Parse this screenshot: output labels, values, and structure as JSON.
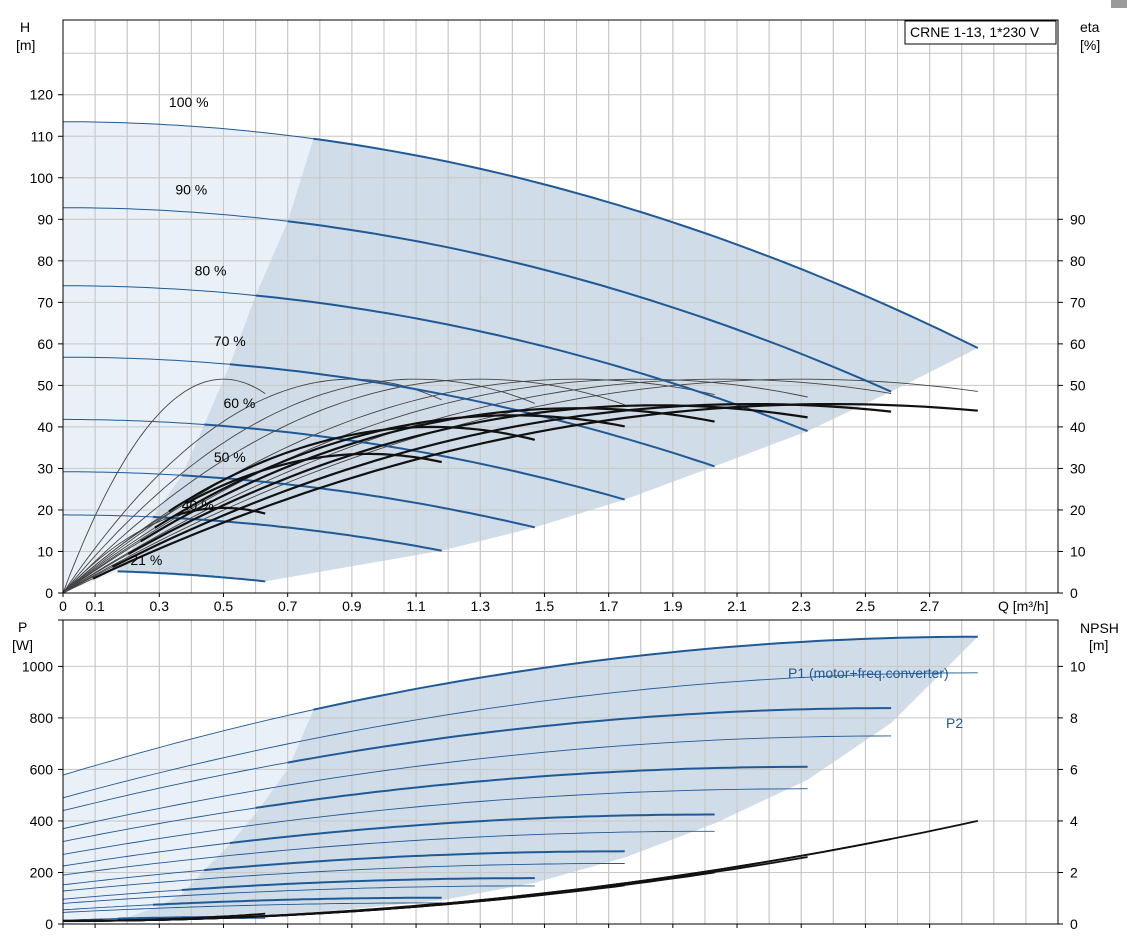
{
  "colors": {
    "grid": "#c8c8c8",
    "axis": "#000000",
    "blue": "#1f5a96",
    "region_dark": "#d0dce7",
    "region_light": "#e9f0f8",
    "eff": "#111111",
    "eff_thin": "#444444"
  },
  "chart_data": [
    {
      "type": "line",
      "panel": "head-efficiency",
      "legend_box": "CRNE 1-13, 1*230 V",
      "left_axis": {
        "label": "H",
        "unit": "[m]",
        "range": [
          0,
          138
        ],
        "ticks": [
          0,
          10,
          20,
          30,
          40,
          50,
          60,
          70,
          80,
          90,
          100,
          110,
          120
        ]
      },
      "right_axis": {
        "label": "eta",
        "unit": "[%]",
        "range": [
          0,
          138
        ],
        "ticks": [
          0,
          10,
          20,
          30,
          40,
          50,
          60,
          70,
          80,
          90
        ]
      },
      "x_axis": {
        "label": "Q [m³/h]",
        "range": [
          0,
          3.1
        ],
        "tick_labels": [
          "0",
          "0.1",
          "0.3",
          "0.5",
          "0.7",
          "0.9",
          "1.1",
          "1.3",
          "1.5",
          "1.7",
          "1.9",
          "2.1",
          "2.3",
          "2.5",
          "2.7"
        ],
        "tick_values": [
          0,
          0.1,
          0.3,
          0.5,
          0.7,
          0.9,
          1.1,
          1.3,
          1.5,
          1.7,
          1.9,
          2.1,
          2.3,
          2.5,
          2.7
        ]
      },
      "grid": true,
      "head_curves": [
        {
          "label": "100 %",
          "shutoff": 113.5,
          "end": [
            2.85,
            59
          ],
          "label_at": [
            0.33,
            117
          ]
        },
        {
          "label": "90 %",
          "shutoff": 92.8,
          "end": [
            2.58,
            48.5
          ],
          "label_at": [
            0.35,
            96
          ]
        },
        {
          "label": "80 %",
          "shutoff": 74,
          "end": [
            2.32,
            39
          ],
          "label_at": [
            0.41,
            76.5
          ]
        },
        {
          "label": "70 %",
          "shutoff": 56.8,
          "end": [
            2.03,
            30.5
          ],
          "label_at": [
            0.47,
            59.5
          ]
        },
        {
          "label": "60 %",
          "shutoff": 41.8,
          "end": [
            1.75,
            22.5
          ],
          "label_at": [
            0.5,
            44.5
          ]
        },
        {
          "label": "50 %",
          "shutoff": 29.2,
          "end": [
            1.47,
            15.8
          ],
          "label_at": [
            0.47,
            31.5
          ]
        },
        {
          "label": "40 %",
          "shutoff": 18.8,
          "end": [
            1.18,
            10.2
          ],
          "label_at": [
            0.37,
            20
          ]
        },
        {
          "label": "21 %",
          "shutoff": 5.4,
          "end": [
            0.63,
            2.8
          ],
          "label_at": [
            0.21,
            6.8
          ]
        }
      ],
      "efficiency_curves": [
        {
          "peak_q": 0.5,
          "peak_eta": 51.5,
          "end": [
            0.63,
            47
          ]
        },
        {
          "peak_q": 0.9,
          "peak_eta": 51.5,
          "end": [
            1.18,
            46
          ]
        },
        {
          "peak_q": 1.1,
          "peak_eta": 51.5,
          "end": [
            1.47,
            47
          ]
        },
        {
          "peak_q": 1.3,
          "peak_eta": 51.5,
          "end": [
            1.75,
            47
          ]
        },
        {
          "peak_q": 1.6,
          "peak_eta": 51.5,
          "end": [
            2.03,
            48
          ]
        },
        {
          "peak_q": 1.8,
          "peak_eta": 51.5,
          "end": [
            2.32,
            48
          ]
        },
        {
          "peak_q": 2.05,
          "peak_eta": 51.5,
          "end": [
            2.58,
            49
          ]
        },
        {
          "peak_q": 2.3,
          "peak_eta": 51.5,
          "end": [
            2.85,
            46.5
          ]
        }
      ],
      "efficiency_bold": [
        {
          "peak_q": 0.5,
          "peak_eta": 20.5,
          "end": [
            0.63,
            18.5
          ]
        },
        {
          "peak_q": 0.95,
          "peak_eta": 33.5,
          "end": [
            1.18,
            32.5
          ]
        },
        {
          "peak_q": 1.15,
          "peak_eta": 40,
          "end": [
            1.47,
            35.5
          ]
        },
        {
          "peak_q": 1.4,
          "peak_eta": 42.8,
          "end": [
            1.75,
            38
          ]
        },
        {
          "peak_q": 1.6,
          "peak_eta": 44.5,
          "end": [
            2.03,
            39
          ]
        },
        {
          "peak_q": 1.85,
          "peak_eta": 45.2,
          "end": [
            2.32,
            40
          ]
        },
        {
          "peak_q": 2.15,
          "peak_eta": 45.5,
          "end": [
            2.58,
            40.5
          ]
        },
        {
          "peak_q": 2.4,
          "peak_eta": 45.5,
          "end": [
            2.85,
            41
          ]
        }
      ]
    },
    {
      "type": "line",
      "panel": "power-npsh",
      "left_axis": {
        "label": "P",
        "unit": "[W]",
        "range": [
          0,
          1180
        ],
        "ticks": [
          0,
          200,
          400,
          600,
          800,
          1000
        ]
      },
      "right_axis": {
        "label": "NPSH",
        "unit": "[m]",
        "range": [
          0,
          11.8
        ],
        "ticks": [
          0,
          2,
          4,
          6,
          8,
          10
        ],
        "tick_labels": [
          "0",
          "2",
          "4",
          "6",
          "8",
          "10"
        ]
      },
      "x_axis": {
        "range": [
          0,
          3.1
        ]
      },
      "grid": true,
      "series_labels": {
        "p1": "P1 (motor+freq.converter)",
        "p2": "P2"
      },
      "p1_curves": [
        {
          "start": 578,
          "end": [
            2.85,
            1115
          ]
        },
        {
          "start": 440,
          "end": [
            2.58,
            838
          ]
        },
        {
          "start": 320,
          "end": [
            2.32,
            610
          ]
        },
        {
          "start": 225,
          "end": [
            2.03,
            425
          ]
        },
        {
          "start": 152,
          "end": [
            1.75,
            282
          ]
        },
        {
          "start": 96,
          "end": [
            1.47,
            178
          ]
        },
        {
          "start": 55,
          "end": [
            1.18,
            102
          ]
        },
        {
          "start": 15,
          "end": [
            0.63,
            28
          ]
        }
      ],
      "p2_curves": [
        {
          "start": 490,
          "end": [
            2.85,
            975
          ]
        },
        {
          "start": 370,
          "end": [
            2.58,
            730
          ]
        },
        {
          "start": 270,
          "end": [
            2.32,
            525
          ]
        },
        {
          "start": 190,
          "end": [
            2.03,
            360
          ]
        },
        {
          "start": 128,
          "end": [
            1.75,
            235
          ]
        },
        {
          "start": 80,
          "end": [
            1.47,
            148
          ]
        },
        {
          "start": 45,
          "end": [
            1.18,
            82
          ]
        },
        {
          "start": 12,
          "end": [
            0.63,
            22
          ]
        }
      ],
      "npsh_curves": [
        {
          "end": [
            2.85,
            4.0
          ]
        },
        {
          "end": [
            2.58,
            3.3
          ]
        },
        {
          "end": [
            2.32,
            2.6
          ]
        },
        {
          "end": [
            2.03,
            2.0
          ]
        },
        {
          "end": [
            1.75,
            1.5
          ]
        },
        {
          "end": [
            1.47,
            1.1
          ]
        },
        {
          "end": [
            1.18,
            0.8
          ]
        },
        {
          "end": [
            0.63,
            0.4
          ]
        }
      ]
    }
  ]
}
